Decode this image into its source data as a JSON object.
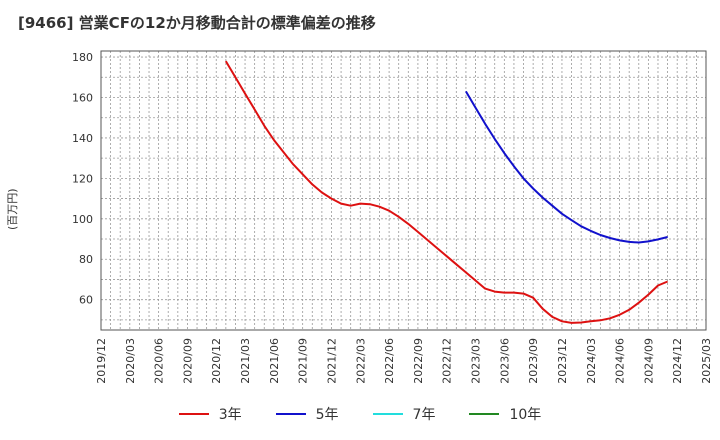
{
  "title": "[9466]  営業CFの12か月移動合計の標準偏差の推移",
  "chart_data": {
    "type": "line",
    "ylabel": "(百万円)",
    "xlabel": "",
    "ylim": [
      45,
      183
    ],
    "yticks": [
      60,
      80,
      100,
      120,
      140,
      160,
      180
    ],
    "xticks": [
      "2019/12",
      "2020/03",
      "2020/06",
      "2020/09",
      "2020/12",
      "2021/03",
      "2021/06",
      "2021/09",
      "2021/12",
      "2022/03",
      "2022/06",
      "2022/09",
      "2022/12",
      "2023/03",
      "2023/06",
      "2023/09",
      "2023/12",
      "2024/03",
      "2024/06",
      "2024/09",
      "2024/12",
      "2025/03"
    ],
    "grid": true,
    "legend_position": "bottom",
    "series": [
      {
        "name": "3年",
        "color": "#dd1111",
        "points": [
          [
            "2021/01",
            178
          ],
          [
            "2021/02",
            170
          ],
          [
            "2021/03",
            162
          ],
          [
            "2021/04",
            154
          ],
          [
            "2021/05",
            146
          ],
          [
            "2021/06",
            139
          ],
          [
            "2021/07",
            133
          ],
          [
            "2021/08",
            127
          ],
          [
            "2021/09",
            122
          ],
          [
            "2021/10",
            117
          ],
          [
            "2021/11",
            113
          ],
          [
            "2021/12",
            110
          ],
          [
            "2022/01",
            107.5
          ],
          [
            "2022/02",
            106.5
          ],
          [
            "2022/03",
            107.5
          ],
          [
            "2022/04",
            107.2
          ],
          [
            "2022/05",
            106
          ],
          [
            "2022/06",
            104
          ],
          [
            "2022/07",
            101
          ],
          [
            "2022/08",
            97.5
          ],
          [
            "2022/09",
            93.5
          ],
          [
            "2022/10",
            89.5
          ],
          [
            "2022/11",
            85.5
          ],
          [
            "2022/12",
            81.5
          ],
          [
            "2023/01",
            77.5
          ],
          [
            "2023/02",
            73.5
          ],
          [
            "2023/03",
            69.5
          ],
          [
            "2023/04",
            65.5
          ],
          [
            "2023/05",
            64
          ],
          [
            "2023/06",
            63.5
          ],
          [
            "2023/07",
            63.5
          ],
          [
            "2023/08",
            63
          ],
          [
            "2023/09",
            61
          ],
          [
            "2023/10",
            55.5
          ],
          [
            "2023/11",
            51.5
          ],
          [
            "2023/12",
            49.3
          ],
          [
            "2024/01",
            48.5
          ],
          [
            "2024/02",
            48.7
          ],
          [
            "2024/03",
            49.3
          ],
          [
            "2024/04",
            49.8
          ],
          [
            "2024/05",
            50.8
          ],
          [
            "2024/06",
            52.5
          ],
          [
            "2024/07",
            55
          ],
          [
            "2024/08",
            58.5
          ],
          [
            "2024/09",
            62.5
          ],
          [
            "2024/10",
            67
          ],
          [
            "2024/11",
            69
          ]
        ]
      },
      {
        "name": "5年",
        "color": "#1111cc",
        "points": [
          [
            "2023/02",
            163
          ],
          [
            "2023/03",
            155
          ],
          [
            "2023/04",
            147
          ],
          [
            "2023/05",
            139.5
          ],
          [
            "2023/06",
            132.5
          ],
          [
            "2023/07",
            126
          ],
          [
            "2023/08",
            120
          ],
          [
            "2023/09",
            115
          ],
          [
            "2023/10",
            110.5
          ],
          [
            "2023/11",
            106.5
          ],
          [
            "2023/12",
            102.5
          ],
          [
            "2024/01",
            99.3
          ],
          [
            "2024/02",
            96.3
          ],
          [
            "2024/03",
            94
          ],
          [
            "2024/04",
            92
          ],
          [
            "2024/05",
            90.5
          ],
          [
            "2024/06",
            89.3
          ],
          [
            "2024/07",
            88.6
          ],
          [
            "2024/08",
            88.3
          ],
          [
            "2024/09",
            88.8
          ],
          [
            "2024/10",
            89.8
          ],
          [
            "2024/11",
            91
          ]
        ]
      },
      {
        "name": "7年",
        "color": "#22dddd",
        "points": []
      },
      {
        "name": "10年",
        "color": "#228822",
        "points": []
      }
    ]
  }
}
